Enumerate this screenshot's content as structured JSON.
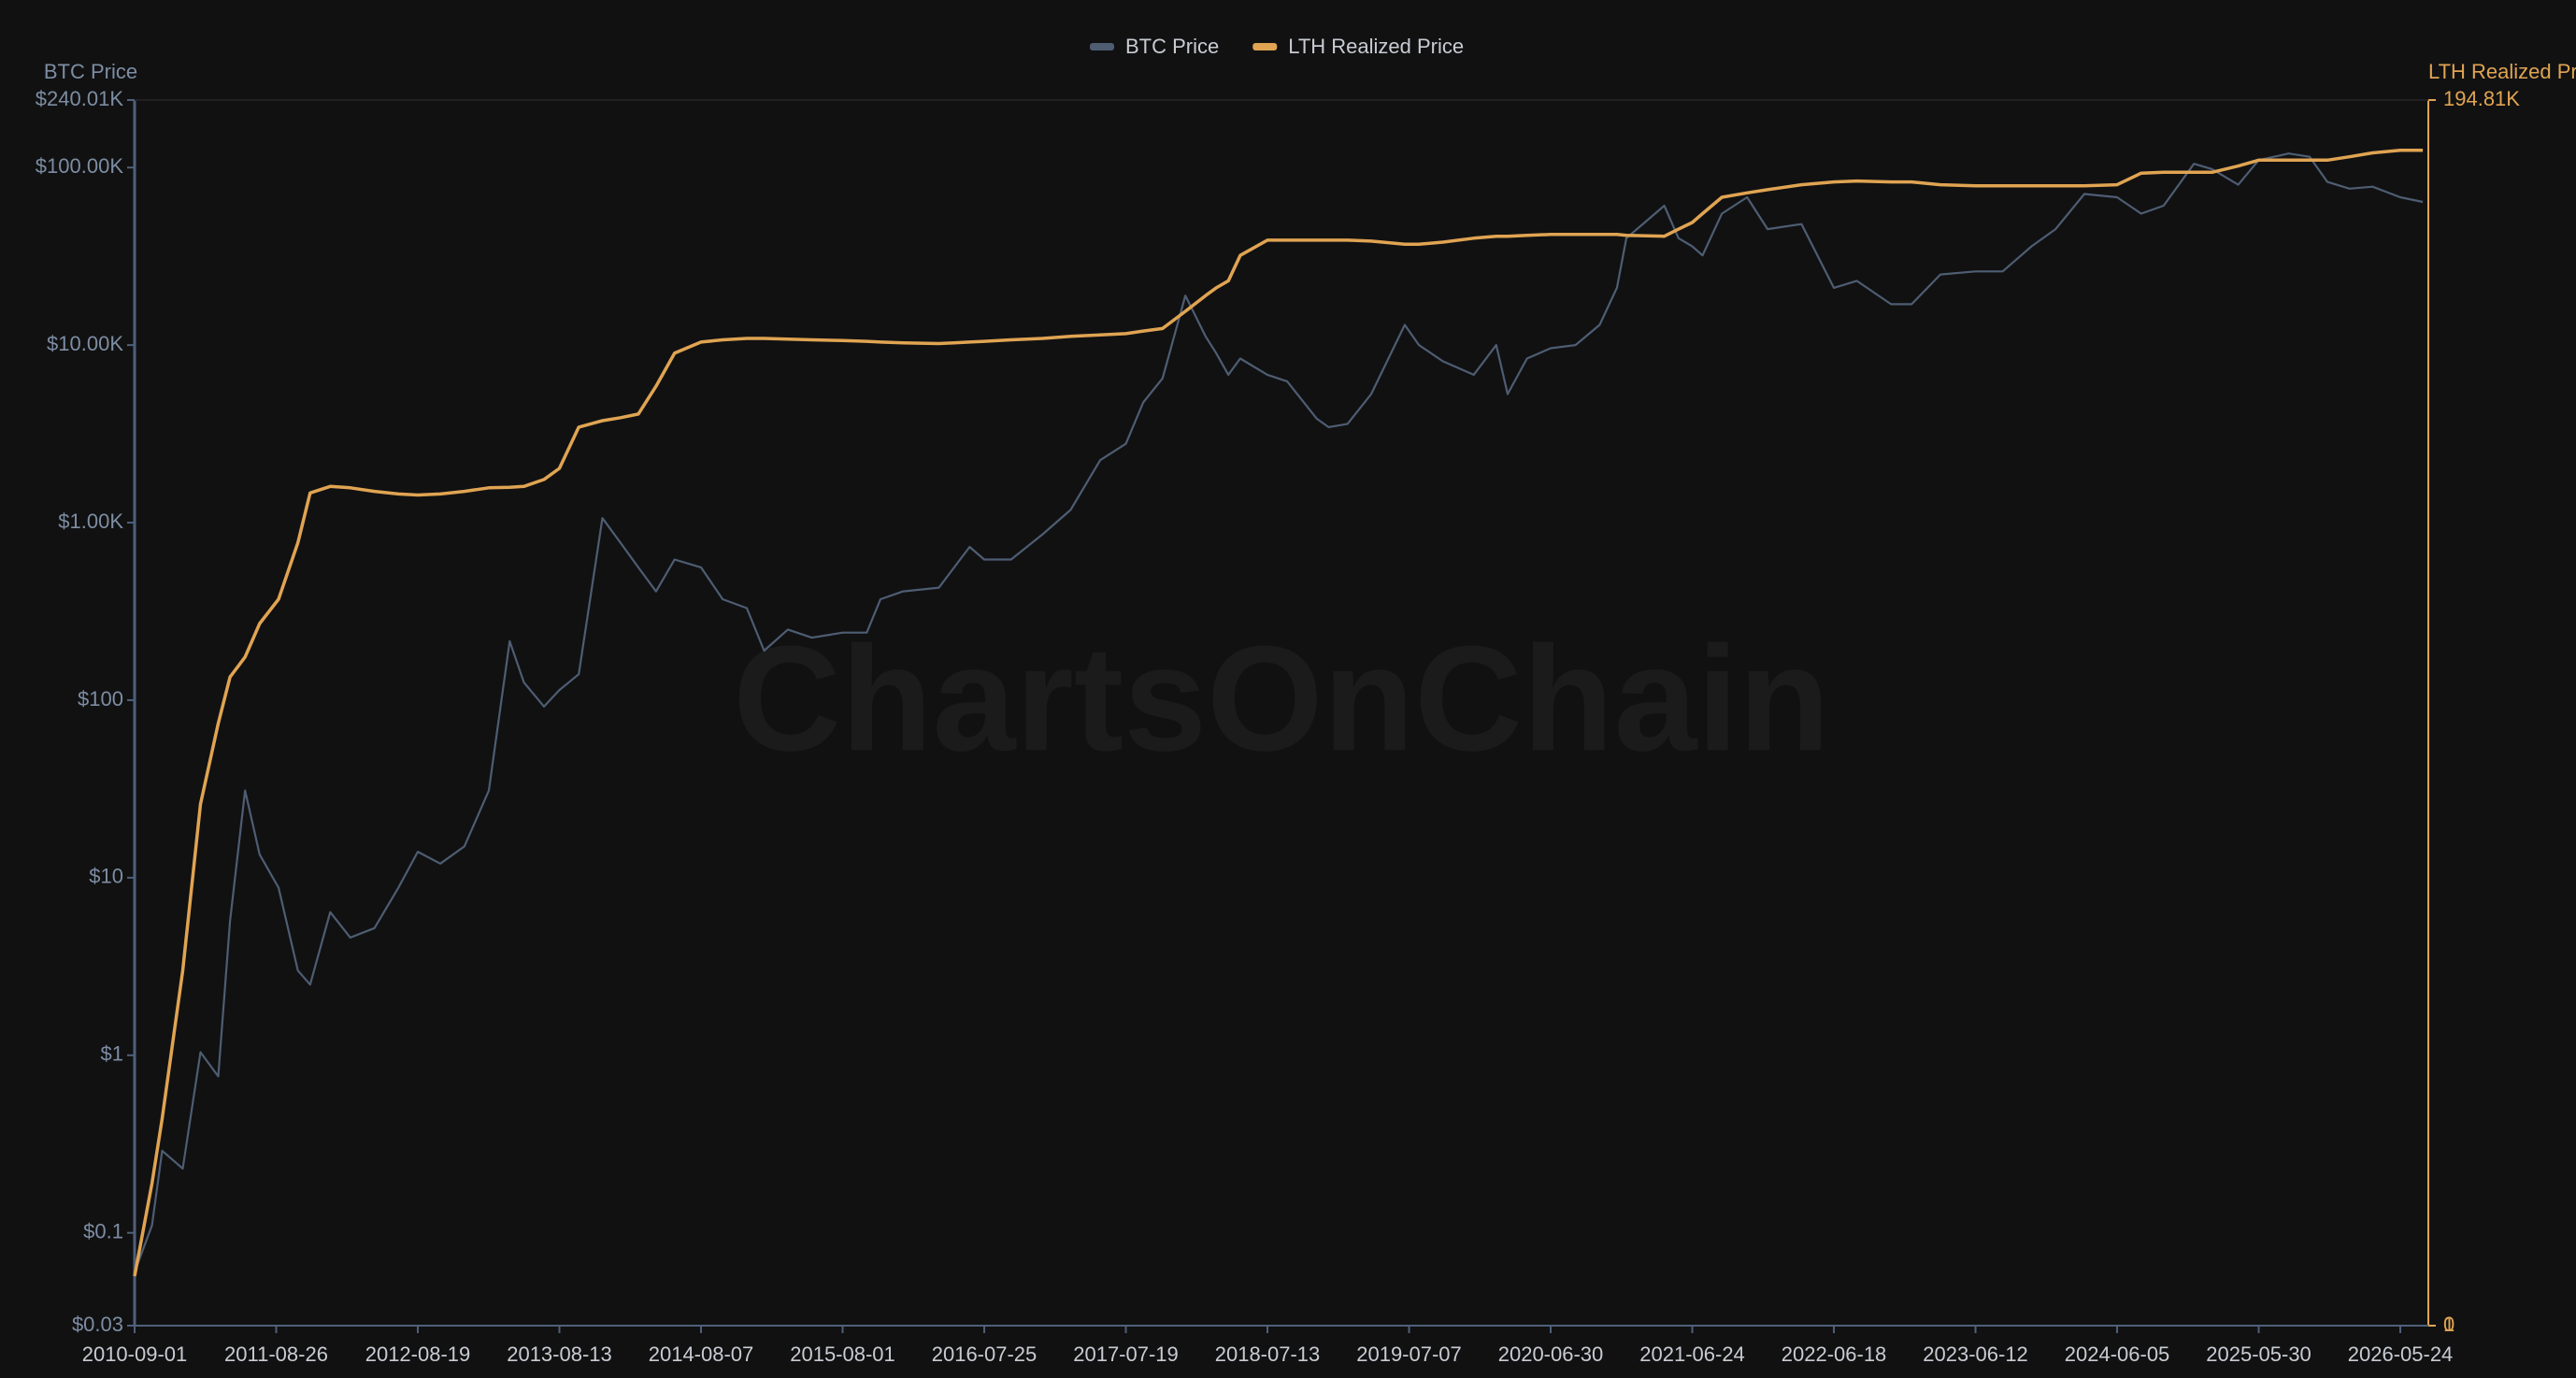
{
  "chart_data": {
    "type": "line",
    "watermark": "ChartsOnChain",
    "y_label": "BTC Price",
    "y2_label": "LTH Realized Price",
    "yscale": "log",
    "legend": "top",
    "grid": true,
    "xlim": [
      "2010-09-01",
      "2026-08-03"
    ],
    "xticks": [
      "2010-09-01",
      "2011-08-26",
      "2012-08-19",
      "2013-08-13",
      "2014-08-07",
      "2015-08-01",
      "2016-07-25",
      "2017-07-19",
      "2018-07-13",
      "2019-07-07",
      "2020-06-30",
      "2021-06-24",
      "2022-06-18",
      "2023-06-12",
      "2024-06-05",
      "2025-05-30",
      "2026-05-24"
    ],
    "ylim": [
      0.03,
      240010
    ],
    "yticks": [
      {
        "value": 0.03,
        "label": "$0.03"
      },
      {
        "value": 0.1,
        "label": "$0.1"
      },
      {
        "value": 1,
        "label": "$1"
      },
      {
        "value": 10,
        "label": "$10"
      },
      {
        "value": 100,
        "label": "$100"
      },
      {
        "value": 1000,
        "label": "$1.00K"
      },
      {
        "value": 10000,
        "label": "$10.00K"
      },
      {
        "value": 100000,
        "label": "$100.00K"
      },
      {
        "value": 240010,
        "label": "$240.01K"
      }
    ],
    "y2lim": [
      0,
      194810
    ],
    "y2ticks": [
      0,
      1,
      {
        "value": 194810,
        "label": "194.81K"
      }
    ],
    "x": [
      "2010-09-01",
      "2010-10-15",
      "2010-11-10",
      "2011-01-01",
      "2011-02-15",
      "2011-04-01",
      "2011-05-01",
      "2011-06-08",
      "2011-07-15",
      "2011-09-01",
      "2011-10-20",
      "2011-11-20",
      "2012-01-10",
      "2012-03-01",
      "2012-05-01",
      "2012-07-01",
      "2012-08-19",
      "2012-10-15",
      "2012-12-15",
      "2013-02-15",
      "2013-04-09",
      "2013-05-15",
      "2013-07-05",
      "2013-08-13",
      "2013-10-01",
      "2013-11-30",
      "2014-01-15",
      "2014-03-01",
      "2014-04-15",
      "2014-06-01",
      "2014-08-07",
      "2014-10-01",
      "2014-12-01",
      "2015-01-14",
      "2015-03-15",
      "2015-05-15",
      "2015-08-01",
      "2015-10-01",
      "2015-11-05",
      "2016-01-01",
      "2016-04-01",
      "2016-06-18",
      "2016-07-25",
      "2016-10-01",
      "2016-12-20",
      "2017-03-01",
      "2017-05-15",
      "2017-07-19",
      "2017-09-01",
      "2017-10-20",
      "2017-12-17",
      "2018-02-06",
      "2018-03-05",
      "2018-04-05",
      "2018-05-05",
      "2018-07-13",
      "2018-09-01",
      "2018-11-15",
      "2018-12-15",
      "2019-02-01",
      "2019-04-02",
      "2019-06-26",
      "2019-08-01",
      "2019-10-01",
      "2019-12-18",
      "2020-02-13",
      "2020-03-13",
      "2020-05-01",
      "2020-06-30",
      "2020-09-01",
      "2020-11-01",
      "2020-12-15",
      "2021-01-08",
      "2021-04-14",
      "2021-05-20",
      "2021-06-24",
      "2021-07-20",
      "2021-09-07",
      "2021-11-10",
      "2022-01-01",
      "2022-03-28",
      "2022-06-18",
      "2022-08-15",
      "2022-11-10",
      "2023-01-01",
      "2023-03-15",
      "2023-06-12",
      "2023-08-20",
      "2023-11-01",
      "2024-01-01",
      "2024-03-14",
      "2024-06-05",
      "2024-08-05",
      "2024-10-01",
      "2024-12-17",
      "2025-02-01",
      "2025-04-08",
      "2025-05-30",
      "2025-08-14",
      "2025-10-06",
      "2025-11-20",
      "2026-01-15",
      "2026-03-15",
      "2026-05-24",
      "2026-07-20"
    ],
    "series": [
      {
        "name": "BTC Price",
        "color": "#4e5d72",
        "values": [
          0.06,
          0.11,
          0.29,
          0.23,
          1.04,
          0.76,
          5.7,
          31,
          13.5,
          8.8,
          3.0,
          2.5,
          6.4,
          4.6,
          5.2,
          8.8,
          14,
          12,
          15,
          31,
          215,
          126,
          92,
          114,
          140,
          1060,
          770,
          560,
          410,
          620,
          560,
          370,
          330,
          190,
          250,
          225,
          240,
          240,
          370,
          410,
          430,
          730,
          620,
          620,
          860,
          1180,
          2250,
          2780,
          4750,
          6500,
          19000,
          11200,
          9000,
          6800,
          8400,
          6800,
          6250,
          3850,
          3450,
          3600,
          5300,
          13000,
          10000,
          8100,
          6800,
          10000,
          5300,
          8400,
          9600,
          10000,
          13000,
          21000,
          40000,
          61000,
          40000,
          36000,
          32000,
          55000,
          68000,
          45000,
          48000,
          21000,
          23000,
          17000,
          17000,
          25000,
          26000,
          26000,
          36000,
          45000,
          71000,
          68000,
          55000,
          61000,
          105000,
          98000,
          80000,
          110000,
          120000,
          115000,
          83000,
          76000,
          78000,
          68000,
          64000
        ]
      },
      {
        "name": "LTH Realized Price",
        "color": "#e0a452",
        "values": [
          0.057,
          0.19,
          0.44,
          3.0,
          26,
          74,
          135,
          175,
          270,
          370,
          770,
          1470,
          1600,
          1570,
          1500,
          1450,
          1430,
          1450,
          1500,
          1570,
          1580,
          1600,
          1750,
          2020,
          3450,
          3750,
          3900,
          4090,
          5870,
          9000,
          10400,
          10700,
          10900,
          10900,
          10800,
          10700,
          10600,
          10500,
          10400,
          10300,
          10200,
          10400,
          10500,
          10700,
          10900,
          11200,
          11400,
          11600,
          12000,
          12400,
          15500,
          19000,
          21000,
          23000,
          32000,
          39000,
          39000,
          39000,
          39000,
          39000,
          38500,
          37000,
          37000,
          38000,
          40000,
          41000,
          41000,
          41500,
          42000,
          42000,
          42000,
          42000,
          41500,
          41000,
          45000,
          49000,
          55000,
          68000,
          72000,
          75000,
          80000,
          83000,
          84000,
          83000,
          83000,
          80000,
          79000,
          79000,
          79000,
          79000,
          79000,
          80000,
          93000,
          94000,
          94000,
          94000,
          102000,
          110000,
          110000,
          110000,
          110000,
          115000,
          121000,
          125000,
          125000
        ]
      }
    ]
  }
}
